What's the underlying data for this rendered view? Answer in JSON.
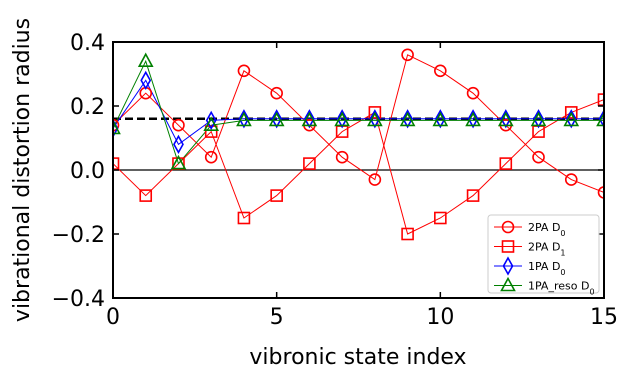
{
  "chart_data": {
    "type": "line",
    "xlabel": "vibronic state index",
    "ylabel": "vibrational distortion radius",
    "xlim": [
      0,
      15
    ],
    "ylim": [
      -0.4,
      0.4
    ],
    "xticks": [
      0,
      5,
      10,
      15
    ],
    "yticks": [
      -0.4,
      -0.2,
      0.0,
      0.2,
      0.4
    ],
    "xtick_labels": [
      "0",
      "5",
      "10",
      "15"
    ],
    "ytick_labels": [
      "−0.4",
      "−0.2",
      "0.0",
      "0.2",
      "0.4"
    ],
    "reference_lines": [
      {
        "y": 0.16,
        "style": "dashed",
        "color": "#000000"
      },
      {
        "y": 0.0,
        "style": "solid",
        "color": "#000000"
      }
    ],
    "legend_position": "bottom-right",
    "series": [
      {
        "name": "2PA D",
        "subscript": "0",
        "marker": "circle",
        "color": "#ff0000",
        "x": [
          0,
          1,
          2,
          3,
          4,
          5,
          6,
          7,
          8,
          9,
          10,
          11,
          12,
          13,
          14,
          15
        ],
        "y": [
          0.14,
          0.24,
          0.14,
          0.04,
          0.31,
          0.24,
          0.14,
          0.04,
          -0.03,
          0.36,
          0.31,
          0.24,
          0.14,
          0.04,
          -0.03,
          -0.07
        ]
      },
      {
        "name": "2PA D",
        "subscript": "1",
        "marker": "square",
        "color": "#ff0000",
        "x": [
          0,
          1,
          2,
          3,
          4,
          5,
          6,
          7,
          8,
          9,
          10,
          11,
          12,
          13,
          14,
          15
        ],
        "y": [
          0.02,
          -0.08,
          0.02,
          0.12,
          -0.15,
          -0.08,
          0.02,
          0.12,
          0.18,
          -0.2,
          -0.15,
          -0.08,
          0.02,
          0.12,
          0.18,
          0.22
        ]
      },
      {
        "name": "1PA D",
        "subscript": "0",
        "marker": "diamond",
        "color": "#0000ff",
        "x": [
          0,
          1,
          2,
          3,
          4,
          5,
          6,
          7,
          8,
          9,
          10,
          11,
          12,
          13,
          14,
          15
        ],
        "y": [
          0.13,
          0.28,
          0.08,
          0.155,
          0.16,
          0.16,
          0.16,
          0.16,
          0.16,
          0.16,
          0.16,
          0.16,
          0.16,
          0.16,
          0.16,
          0.16
        ]
      },
      {
        "name": "1PA_reso D",
        "subscript": "0",
        "marker": "triangle",
        "color": "#008000",
        "x": [
          0,
          1,
          2,
          3,
          4,
          5,
          6,
          7,
          8,
          9,
          10,
          11,
          12,
          13,
          14,
          15
        ],
        "y": [
          0.13,
          0.34,
          0.02,
          0.14,
          0.155,
          0.155,
          0.155,
          0.155,
          0.155,
          0.155,
          0.155,
          0.155,
          0.155,
          0.155,
          0.155,
          0.155
        ]
      }
    ]
  }
}
